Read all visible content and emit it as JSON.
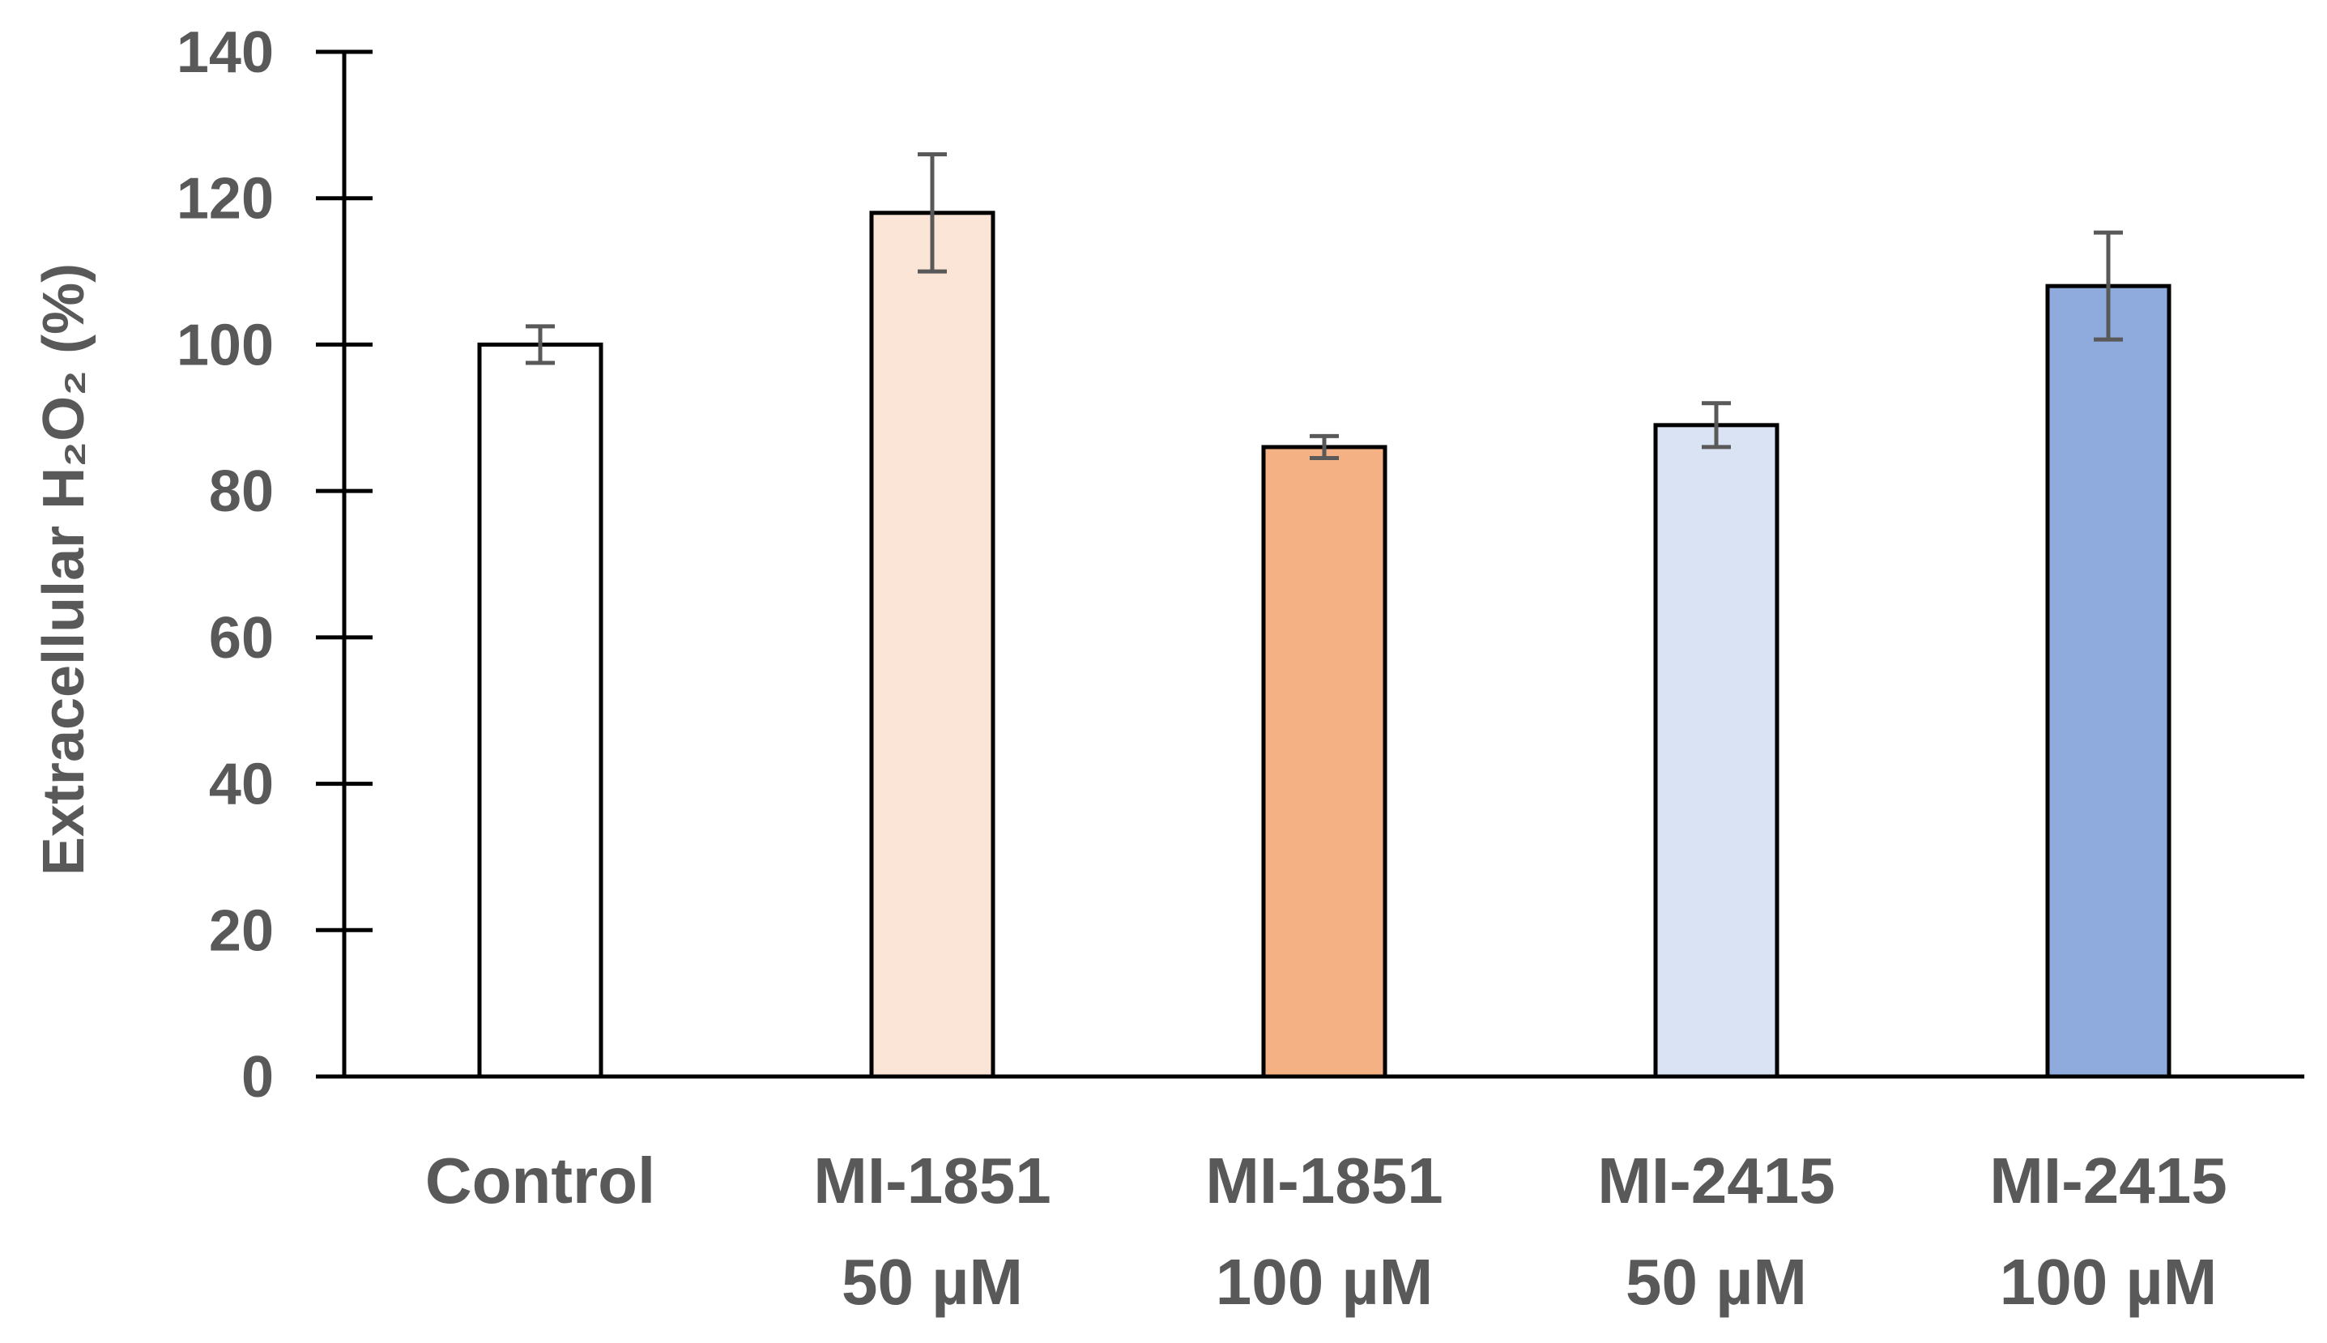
{
  "chart_data": {
    "type": "bar",
    "title": "",
    "xlabel": "",
    "ylabel": "Extracellular H₂O₂ (%)",
    "ylim": [
      0,
      140
    ],
    "yticks": [
      0,
      20,
      40,
      60,
      80,
      100,
      120,
      140
    ],
    "ytick_labels": [
      "0",
      "20",
      "40",
      "60",
      "80",
      "100",
      "120",
      "140"
    ],
    "grid": false,
    "categories": [
      {
        "line1": "Control",
        "line2": ""
      },
      {
        "line1": "MI-1851",
        "line2": "50 µM"
      },
      {
        "line1": "MI-1851",
        "line2": "100 µM"
      },
      {
        "line1": "MI-2415",
        "line2": "50 µM"
      },
      {
        "line1": "MI-2415",
        "line2": "100 µM"
      }
    ],
    "values": [
      100,
      118,
      86,
      89,
      108
    ],
    "errors": [
      2.5,
      8,
      1.5,
      3,
      7.3
    ],
    "colors": [
      "#FFFFFF",
      "#FBE5D6",
      "#F4B183",
      "#DAE3F3",
      "#8FAADC"
    ]
  }
}
